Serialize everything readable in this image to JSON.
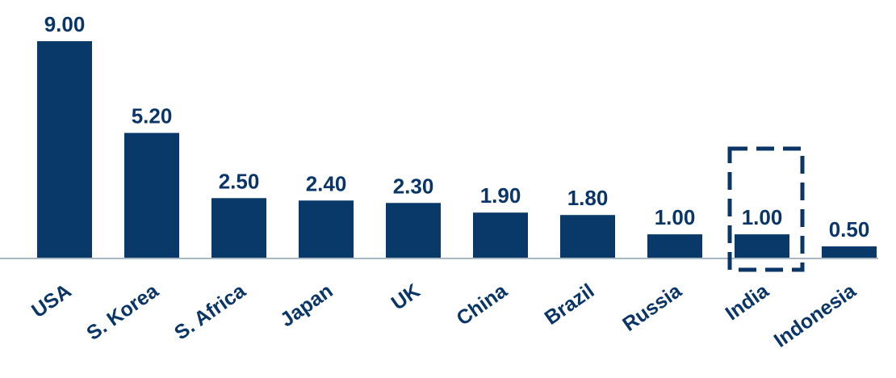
{
  "chart_data": {
    "type": "bar",
    "categories": [
      "USA",
      "S. Korea",
      "S. Africa",
      "Japan",
      "UK",
      "China",
      "Brazil",
      "Russia",
      "India",
      "Indonesia"
    ],
    "values": [
      9.0,
      5.2,
      2.5,
      2.4,
      2.3,
      1.9,
      1.8,
      1.0,
      1.0,
      0.5
    ],
    "value_labels": [
      "9.00",
      "5.20",
      "2.50",
      "2.40",
      "2.30",
      "1.90",
      "1.80",
      "1.00",
      "1.00",
      "0.50"
    ],
    "title": "",
    "xlabel": "",
    "ylabel": "",
    "ylim": [
      0,
      9
    ],
    "grid": false,
    "highlighted_category": "India",
    "colors": {
      "bar": "#083968",
      "text": "#0a3567",
      "axis": "#a9b6c6",
      "highlight_border": "#0a3567"
    }
  }
}
